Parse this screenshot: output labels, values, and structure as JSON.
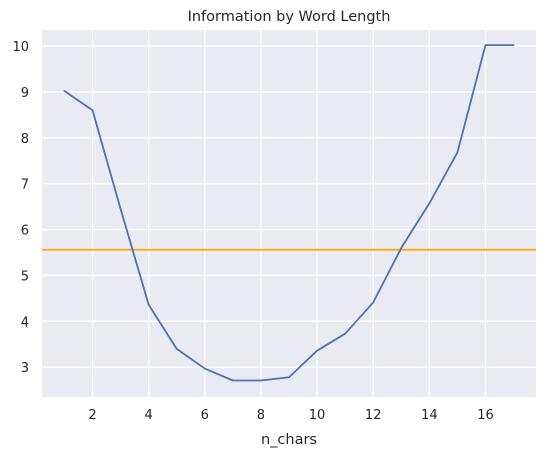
{
  "chart_data": {
    "type": "line",
    "title": "Information by Word Length",
    "xlabel": "n_chars",
    "ylabel": "",
    "xlim": [
      0.2,
      17.8
    ],
    "ylim": [
      2.35,
      10.35
    ],
    "xticks": [
      2,
      4,
      6,
      8,
      10,
      12,
      14,
      16
    ],
    "yticks": [
      3,
      4,
      5,
      6,
      7,
      8,
      9,
      10
    ],
    "grid": true,
    "series": [
      {
        "x": [
          1,
          2,
          3,
          4,
          5,
          6,
          7,
          8,
          9,
          10,
          11,
          12,
          13,
          14,
          15,
          16,
          17
        ],
        "values": [
          9.02,
          8.6,
          6.45,
          4.36,
          3.4,
          2.97,
          2.71,
          2.71,
          2.78,
          3.36,
          3.73,
          4.41,
          5.6,
          6.57,
          7.68,
          10.02,
          10.02
        ],
        "color": "#4c72b0"
      }
    ],
    "reference_lines": [
      {
        "y": 5.56,
        "color": "#ffa500"
      }
    ],
    "colors": {
      "plot_background": "#eaeaf2",
      "grid": "#ffffff",
      "text": "#262626"
    }
  }
}
